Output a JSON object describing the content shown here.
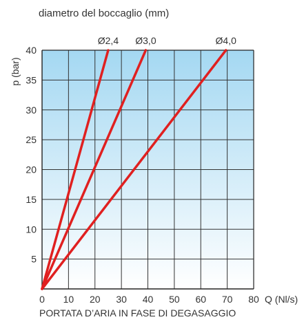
{
  "chart_data": {
    "type": "line",
    "title": "diametro del boccaglio (mm)",
    "xlabel": "Q (Nl/s)",
    "ylabel": "p (bar)",
    "footer": "PORTATA D’ARIA IN FASE DI DEGASAGGIO",
    "xlim": [
      0,
      80
    ],
    "ylim": [
      0,
      40
    ],
    "xticks": [
      "0",
      "10",
      "20",
      "30",
      "40",
      "50",
      "60",
      "70",
      "80"
    ],
    "yticks": [
      "5",
      "10",
      "15",
      "20",
      "25",
      "30",
      "35",
      "40"
    ],
    "grid": true,
    "series": [
      {
        "name": "Ø2,4",
        "x": [
          0,
          25
        ],
        "y": [
          0,
          40
        ]
      },
      {
        "name": "Ø3,0",
        "x": [
          0,
          39.2
        ],
        "y": [
          0,
          40
        ]
      },
      {
        "name": "Ø4,0",
        "x": [
          0,
          69.5
        ],
        "y": [
          0,
          40
        ]
      }
    ],
    "colors": {
      "line": "#e02020",
      "grid": "#333333",
      "bg_top": "#a4d8f2",
      "bg_bottom": "#ffffff"
    }
  }
}
